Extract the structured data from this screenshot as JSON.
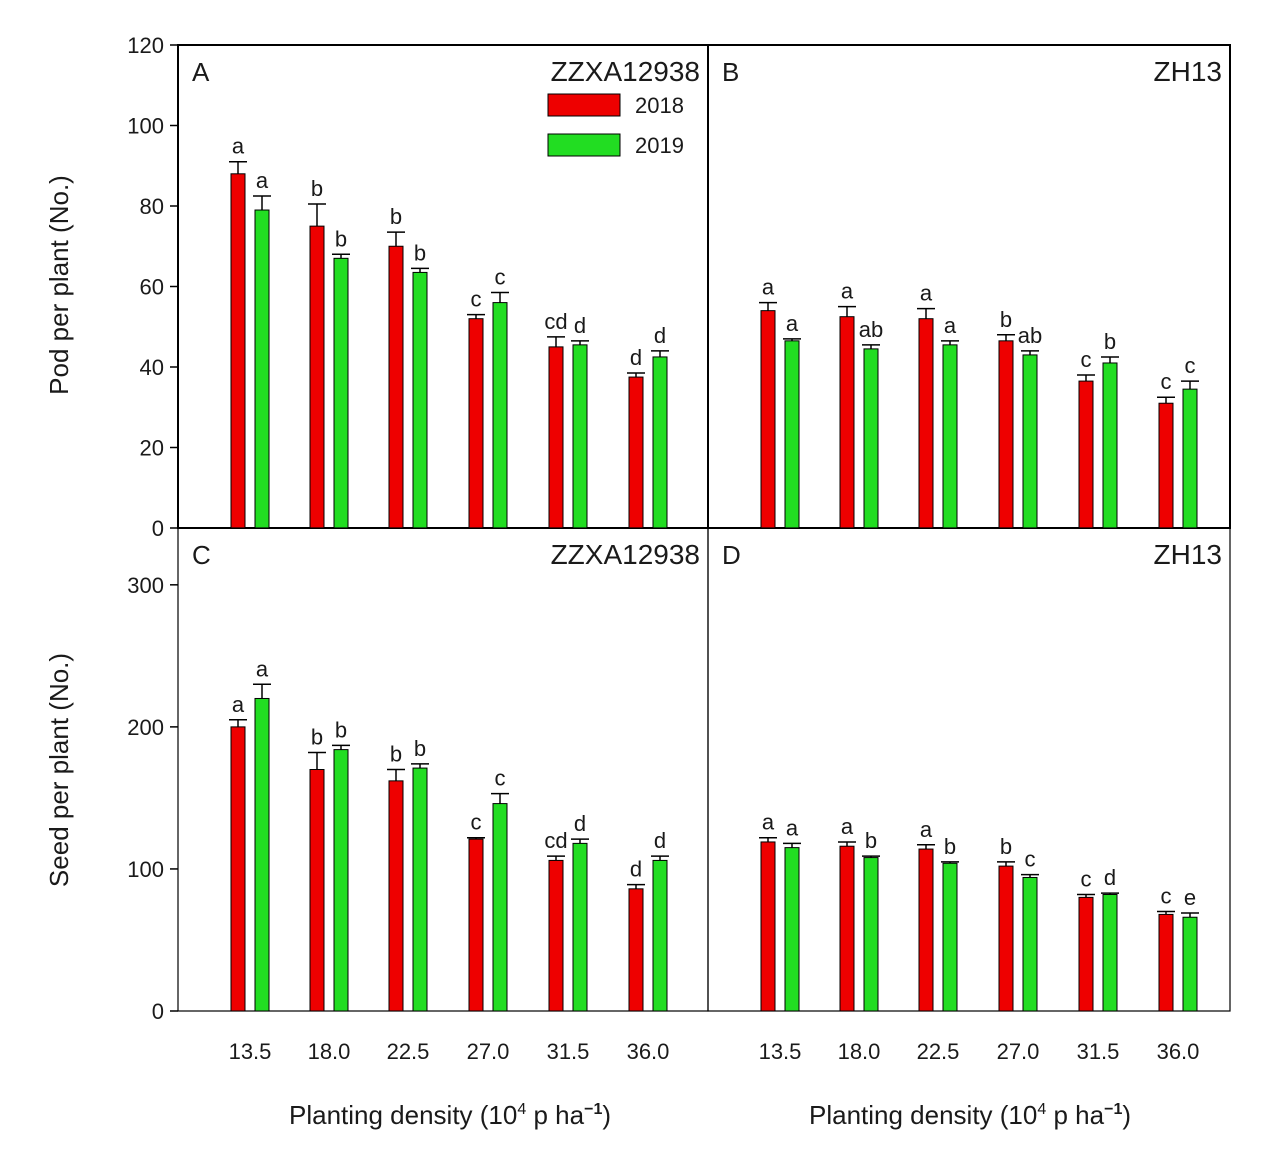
{
  "figure": {
    "ylabel_top": "Pod per plant (No.)",
    "ylabel_bottom": "Seed per plant (No.)",
    "xlabel_left": {
      "prefix": "Planting density (10",
      "sup1": "4",
      "mid": " p ha",
      "sup2": "−1",
      "suffix": ")"
    },
    "xlabel_right": {
      "prefix": "Planting density (10",
      "sup1": "4",
      "mid": " p ha",
      "sup2": "−1",
      "suffix": ")"
    },
    "legend": [
      {
        "label": "2018",
        "color": "#ee0000"
      },
      {
        "label": "2019",
        "color": "#22dd22"
      }
    ]
  },
  "chart_data": [
    {
      "panel": "A",
      "title": "ZZXA12938",
      "type": "bar",
      "categories": [
        "13.5",
        "18.0",
        "22.5",
        "27.0",
        "31.5",
        "36.0"
      ],
      "ylim": [
        0,
        120
      ],
      "yticks": [
        "0",
        "20",
        "40",
        "60",
        "80",
        "100",
        "120"
      ],
      "series": [
        {
          "name": "2018",
          "values": [
            88,
            75,
            70,
            52,
            45,
            37.5
          ],
          "errors": [
            3,
            5.5,
            3.5,
            1,
            2.5,
            1
          ],
          "letters": [
            "a",
            "b",
            "b",
            "c",
            "cd",
            "d"
          ]
        },
        {
          "name": "2019",
          "values": [
            79,
            67,
            63.5,
            56,
            45.5,
            42.5
          ],
          "errors": [
            3.5,
            1,
            1,
            2.5,
            1,
            1.5
          ],
          "letters": [
            "a",
            "b",
            "b",
            "c",
            "d",
            "d"
          ]
        }
      ]
    },
    {
      "panel": "B",
      "title": "ZH13",
      "type": "bar",
      "categories": [
        "13.5",
        "18.0",
        "22.5",
        "27.0",
        "31.5",
        "36.0"
      ],
      "ylim": [
        0,
        120
      ],
      "yticks": [],
      "series": [
        {
          "name": "2018",
          "values": [
            54,
            52.5,
            52,
            46.5,
            36.5,
            31
          ],
          "errors": [
            2,
            2.5,
            2.5,
            1.5,
            1.5,
            1.5
          ],
          "letters": [
            "a",
            "a",
            "a",
            "b",
            "c",
            "c"
          ]
        },
        {
          "name": "2019",
          "values": [
            46.5,
            44.5,
            45.5,
            43,
            41,
            34.5
          ],
          "errors": [
            0.5,
            1,
            1,
            1,
            1.5,
            2
          ],
          "letters": [
            "a",
            "ab",
            "a",
            "ab",
            "b",
            "c"
          ]
        }
      ]
    },
    {
      "panel": "C",
      "title": "ZZXA12938",
      "type": "bar",
      "categories": [
        "13.5",
        "18.0",
        "22.5",
        "27.0",
        "31.5",
        "36.0"
      ],
      "ylim": [
        0,
        340
      ],
      "yticks": [
        "0",
        "100",
        "200",
        "300"
      ],
      "series": [
        {
          "name": "2018",
          "values": [
            200,
            170,
            162,
            121,
            106,
            86
          ],
          "errors": [
            5,
            12,
            8,
            1,
            3,
            3
          ],
          "letters": [
            "a",
            "b",
            "b",
            "c",
            "cd",
            "d"
          ]
        },
        {
          "name": "2019",
          "values": [
            220,
            184,
            171,
            146,
            118,
            106
          ],
          "errors": [
            10,
            3,
            3,
            7,
            3,
            3
          ],
          "letters": [
            "a",
            "b",
            "b",
            "c",
            "d",
            "d"
          ]
        }
      ]
    },
    {
      "panel": "D",
      "title": "ZH13",
      "type": "bar",
      "categories": [
        "13.5",
        "18.0",
        "22.5",
        "27.0",
        "31.5",
        "36.0"
      ],
      "ylim": [
        0,
        340
      ],
      "yticks": [],
      "series": [
        {
          "name": "2018",
          "values": [
            119,
            116,
            114,
            102,
            80,
            68
          ],
          "errors": [
            3,
            3,
            3,
            3,
            2,
            2
          ],
          "letters": [
            "a",
            "a",
            "a",
            "b",
            "c",
            "c"
          ]
        },
        {
          "name": "2019",
          "values": [
            115,
            108,
            104,
            94,
            82,
            66
          ],
          "errors": [
            3,
            1,
            1,
            2,
            1,
            3
          ],
          "letters": [
            "a",
            "b",
            "b",
            "c",
            "d",
            "e"
          ]
        }
      ]
    }
  ]
}
